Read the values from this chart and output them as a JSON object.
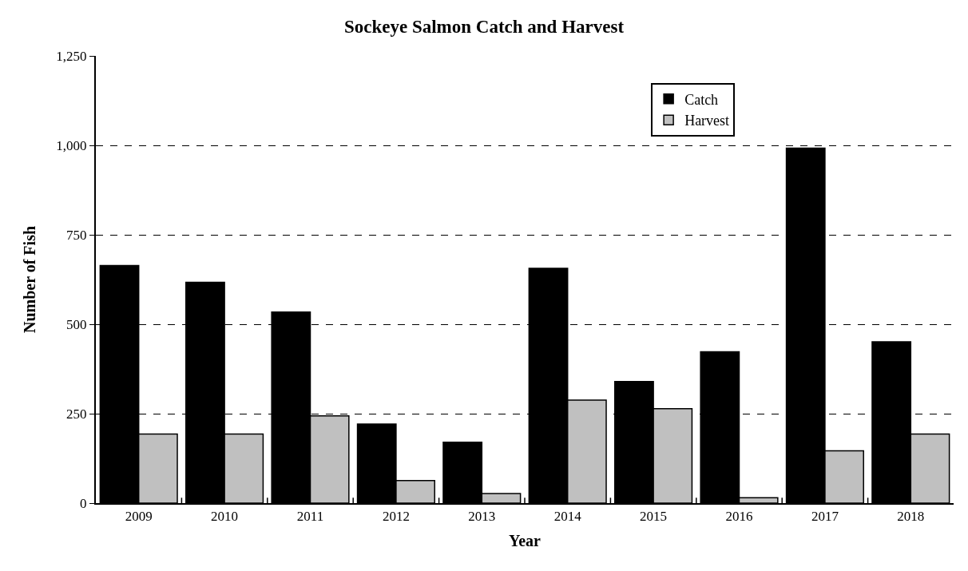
{
  "chart_data": {
    "type": "bar",
    "title": "Sockeye Salmon Catch and Harvest",
    "xlabel": "Year",
    "ylabel": "Number of Fish",
    "categories": [
      "2009",
      "2010",
      "2011",
      "2012",
      "2013",
      "2014",
      "2015",
      "2016",
      "2017",
      "2018"
    ],
    "series": [
      {
        "name": "Catch",
        "color": "#000000",
        "values": [
          664,
          617,
          534,
          221,
          170,
          656,
          340,
          423,
          992,
          451
        ]
      },
      {
        "name": "Harvest",
        "color": "#c0c0c0",
        "values": [
          193,
          193,
          244,
          63,
          27,
          288,
          264,
          15,
          146,
          193
        ]
      }
    ],
    "ylim": [
      0,
      1250
    ],
    "yticks": [
      {
        "value": 0,
        "label": "0"
      },
      {
        "value": 250,
        "label": "250"
      },
      {
        "value": 500,
        "label": "500"
      },
      {
        "value": 750,
        "label": "750"
      },
      {
        "value": 1000,
        "label": "1,000"
      },
      {
        "value": 1250,
        "label": "1,250"
      }
    ],
    "grid": "y",
    "legend": "top right"
  }
}
